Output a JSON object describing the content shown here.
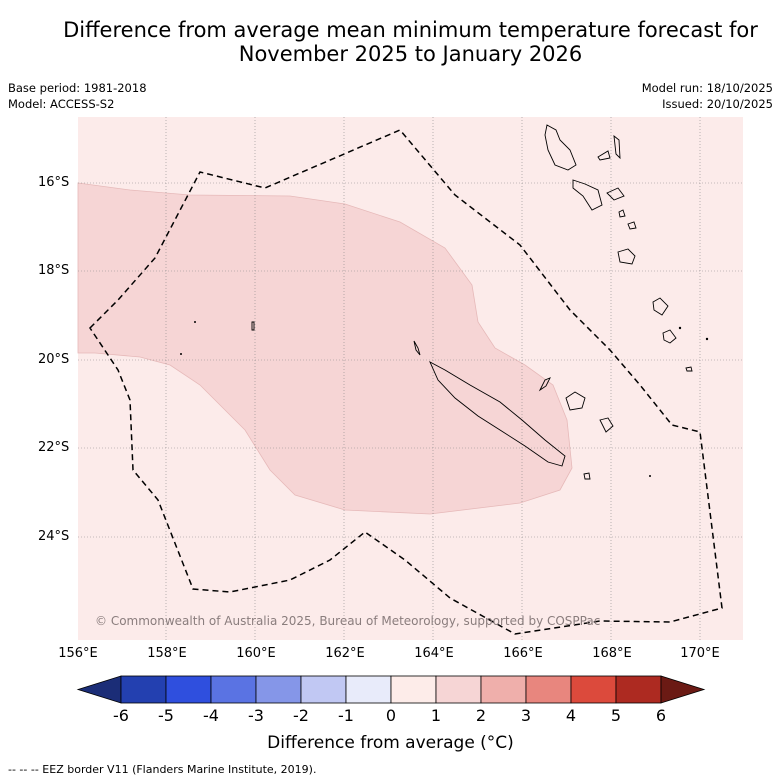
{
  "title_line1": "Difference from average mean minimum temperature forecast for",
  "title_line2": "November 2025 to January 2026",
  "meta": {
    "base_period": "Base period: 1981-2018",
    "model": "Model: ACCESS-S2",
    "model_run": "Model run: 18/10/2025",
    "issued": "Issued: 20/10/2025"
  },
  "y_ticks": [
    "16°S",
    "18°S",
    "20°S",
    "22°S",
    "24°S"
  ],
  "x_ticks": [
    "156°E",
    "158°E",
    "160°E",
    "162°E",
    "164°E",
    "166°E",
    "168°E",
    "170°E"
  ],
  "copyright": "© Commonwealth of Australia 2025, Bureau of Meteorology, supported by COSPPac",
  "colorbar": {
    "title": "Difference from average (°C)",
    "ticks": [
      "-6",
      "-5",
      "-4",
      "-3",
      "-2",
      "-1",
      "0",
      "1",
      "2",
      "3",
      "4",
      "5",
      "6"
    ],
    "colors": [
      "#1b2d77",
      "#2340b0",
      "#2f4fde",
      "#5a73e3",
      "#8596e8",
      "#c1c8f3",
      "#e8ebfa",
      "#fdece9",
      "#f6d5d5",
      "#efafab",
      "#e8867e",
      "#dc4a3c",
      "#ad2a21",
      "#6b1a14"
    ]
  },
  "map_colors": {
    "background": "#fcebea",
    "anomaly_region": "#f6d5d5"
  },
  "footer": "--  --  -- EEZ border V11 (Flanders Marine Institute, 2019)."
}
